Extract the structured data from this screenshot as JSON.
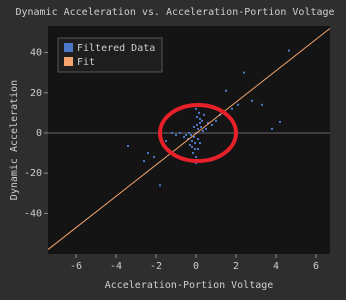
{
  "chart_data": {
    "type": "scatter",
    "title": "Dynamic Acceleration vs. Acceleration-Portion Voltage",
    "x_label": "Acceleration-Portion Voltage",
    "y_label": "Dynamic Acceleration",
    "xlim": [
      -7.4,
      6.7
    ],
    "ylim": [
      -60.2,
      53.2
    ],
    "xticks": [
      -6,
      -4,
      -2,
      0,
      2,
      4,
      6
    ],
    "yticks": [
      -40,
      -20,
      0,
      20,
      40
    ],
    "axhline": 0,
    "legend": "upper left",
    "series": [
      {
        "name": "Filtered Data",
        "color": "#4c78c8",
        "kind": "scatter",
        "x": [
          0,
          0.1,
          -0.1,
          0.2,
          -0.2,
          0.05,
          0.15,
          -0.05,
          -0.15,
          0.25,
          -0.25,
          0.3,
          -0.3,
          0.1,
          -0.1,
          0.2,
          0,
          0,
          0.1,
          -0.1,
          0.35,
          -0.35,
          0.05,
          -0.05,
          0.2,
          -0.2,
          0.4,
          -0.4,
          0.1,
          0,
          0.5,
          -0.5,
          -0.8,
          -1.0,
          -1.2,
          0.8,
          1.0,
          1.2,
          -1.5,
          -0.6,
          0.6,
          4.65,
          2.4,
          1.5,
          3.3,
          2.1,
          4.2,
          3.8,
          -3.4,
          -2.4,
          -1.8,
          -2.1,
          1.8,
          -1.3,
          2.8,
          -2.6
        ],
        "y": [
          0,
          2,
          -2,
          5,
          -4,
          8,
          10,
          -8,
          -10,
          3,
          -1,
          6,
          -6,
          -3,
          3,
          -5,
          12,
          -12,
          14,
          -14,
          1,
          0,
          4,
          -5,
          7,
          -7,
          9,
          -3,
          -8,
          -15,
          2,
          -1,
          0,
          -1,
          0,
          4,
          6,
          9,
          -4,
          -2,
          5,
          41,
          30,
          21,
          14,
          14,
          5.5,
          2,
          -6.5,
          -10,
          -26,
          -12,
          12,
          -9,
          16,
          -14
        ]
      },
      {
        "name": "Fit",
        "color": "#f5a46b",
        "kind": "line",
        "x": [
          -7.4,
          6.7
        ],
        "y": [
          -58,
          52
        ]
      }
    ]
  }
}
